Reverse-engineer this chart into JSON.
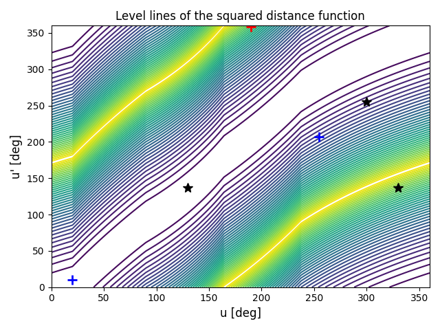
{
  "title": "Level lines of the squared distance function",
  "xlabel": "u [deg]",
  "ylabel": "u' [deg]",
  "xlim": [
    0,
    360
  ],
  "ylim": [
    0,
    360
  ],
  "xticks": [
    0,
    50,
    100,
    150,
    200,
    250,
    300,
    350
  ],
  "yticks": [
    0,
    50,
    100,
    150,
    200,
    250,
    300,
    350
  ],
  "cmap": "viridis",
  "n_levels": 40,
  "red_plus": [
    190,
    358
  ],
  "blue_plus_1": [
    20,
    10
  ],
  "blue_plus_2": [
    255,
    207
  ],
  "star_1": [
    130,
    137
  ],
  "star_2": [
    300,
    255
  ],
  "star_3": [
    330,
    137
  ],
  "marker_size": 10,
  "figsize": [
    6.4,
    4.8
  ],
  "dpi": 100
}
